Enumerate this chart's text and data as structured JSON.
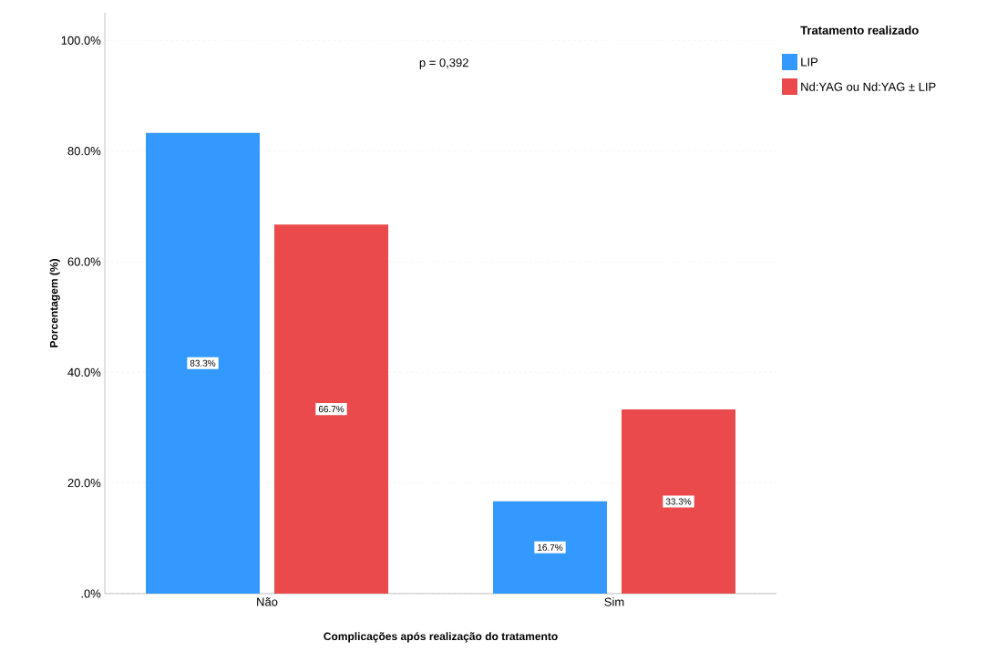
{
  "chart_data": {
    "type": "bar",
    "xlabel": "Complicações após realização do tratamento",
    "ylabel": "Porcentagem (%)",
    "legend_title": "Tratamento realizado",
    "categories": [
      "Não",
      "Sim"
    ],
    "series": [
      {
        "name": "LIP",
        "color": "#3399ff",
        "values": [
          83.3,
          16.7
        ],
        "value_labels": [
          "83.3%",
          "16.7%"
        ]
      },
      {
        "name": "Nd:YAG ou Nd:YAG ± LIP",
        "color": "#ea4a4c",
        "values": [
          66.7,
          33.3
        ],
        "value_labels": [
          "66.7%",
          "33.3%"
        ]
      }
    ],
    "ylim": [
      0,
      105
    ],
    "yticks": [
      {
        "value": 0,
        "label": ".0%"
      },
      {
        "value": 20,
        "label": "20.0%"
      },
      {
        "value": 40,
        "label": "40.0%"
      },
      {
        "value": 60,
        "label": "60.0%"
      },
      {
        "value": 80,
        "label": "80.0%"
      },
      {
        "value": 100,
        "label": "100.0%"
      }
    ],
    "grid": "y",
    "legend": "top right",
    "annotations": [
      "p = 0,392"
    ]
  }
}
